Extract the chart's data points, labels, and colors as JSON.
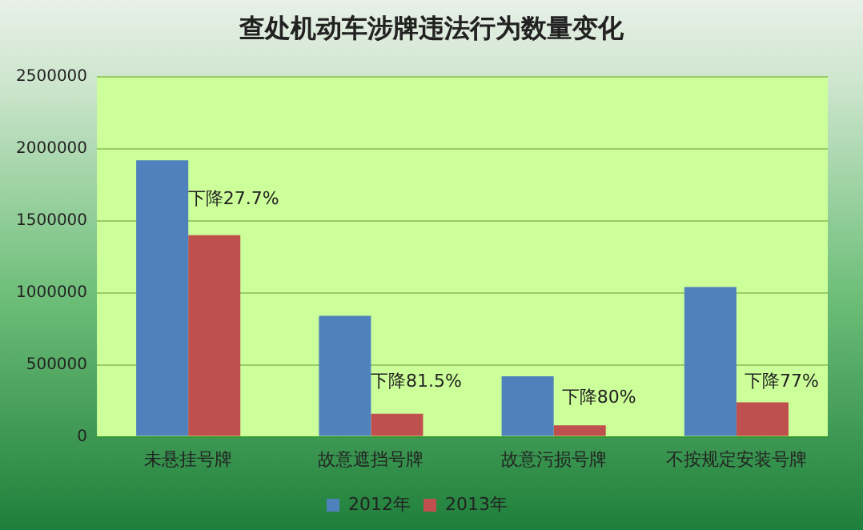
{
  "chart_data": {
    "type": "bar",
    "title": "查处机动车涉牌违法行为数量变化",
    "categories": [
      "未悬挂号牌",
      "故意遮挡号牌",
      "故意污损号牌",
      "不按规定安装号牌"
    ],
    "series": [
      {
        "name": "2012年",
        "color": "#4f81bd",
        "values": [
          1920000,
          840000,
          420000,
          1040000
        ]
      },
      {
        "name": "2013年",
        "color": "#c0504d",
        "values": [
          1400000,
          160000,
          80000,
          240000
        ]
      }
    ],
    "ylim": [
      0,
      2500000
    ],
    "yticks": [
      0,
      500000,
      1000000,
      1500000,
      2000000,
      2500000
    ],
    "grid": "y",
    "legend": "bottom",
    "annotations": [
      {
        "text": "下降27.7%",
        "x": "未悬挂号牌",
        "y": 1650000
      },
      {
        "text": "下降81.5%",
        "x": "故意遮挡号牌",
        "y": 380000
      },
      {
        "text": "下降80%",
        "x": "故意污损号牌",
        "y": 270000
      },
      {
        "text": "下降77%",
        "x": "不按规定安装号牌",
        "y": 380000
      }
    ]
  }
}
